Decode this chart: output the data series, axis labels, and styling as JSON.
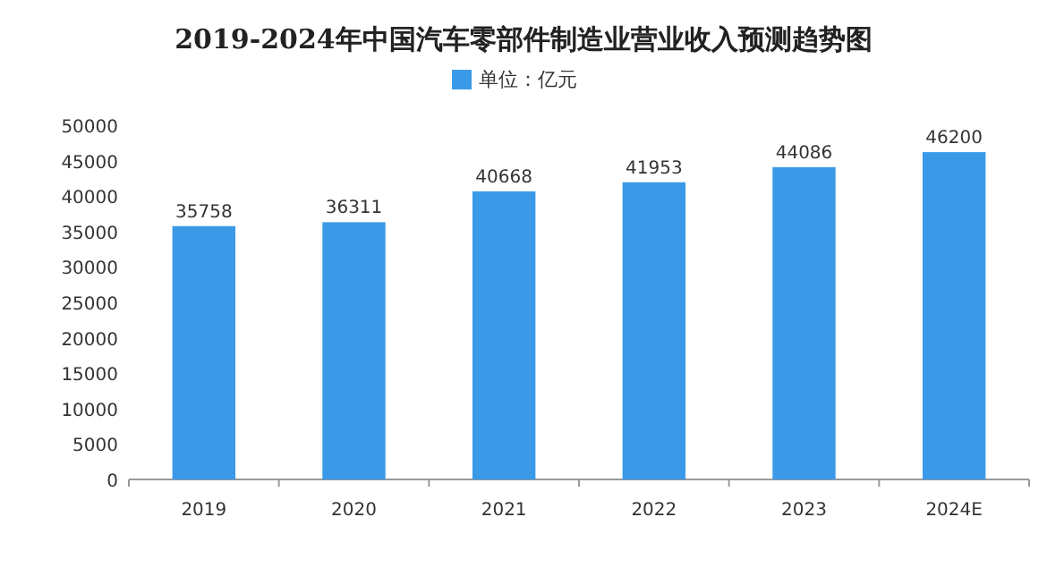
{
  "chart_data": {
    "type": "bar",
    "title": "2019-2024年中国汽车零部件制造业营业收入预测趋势图",
    "categories": [
      "2019",
      "2020",
      "2021",
      "2022",
      "2023",
      "2024E"
    ],
    "series": [
      {
        "name": "单位：亿元",
        "color": "#3b9ae8",
        "values": [
          35758,
          36311,
          40668,
          41953,
          44086,
          46200
        ]
      }
    ],
    "ylim": [
      0,
      50000
    ],
    "yticks": [
      0,
      5000,
      10000,
      15000,
      20000,
      25000,
      30000,
      35000,
      40000,
      45000,
      50000
    ],
    "data_labels": true,
    "legend": "top",
    "grid": false
  }
}
